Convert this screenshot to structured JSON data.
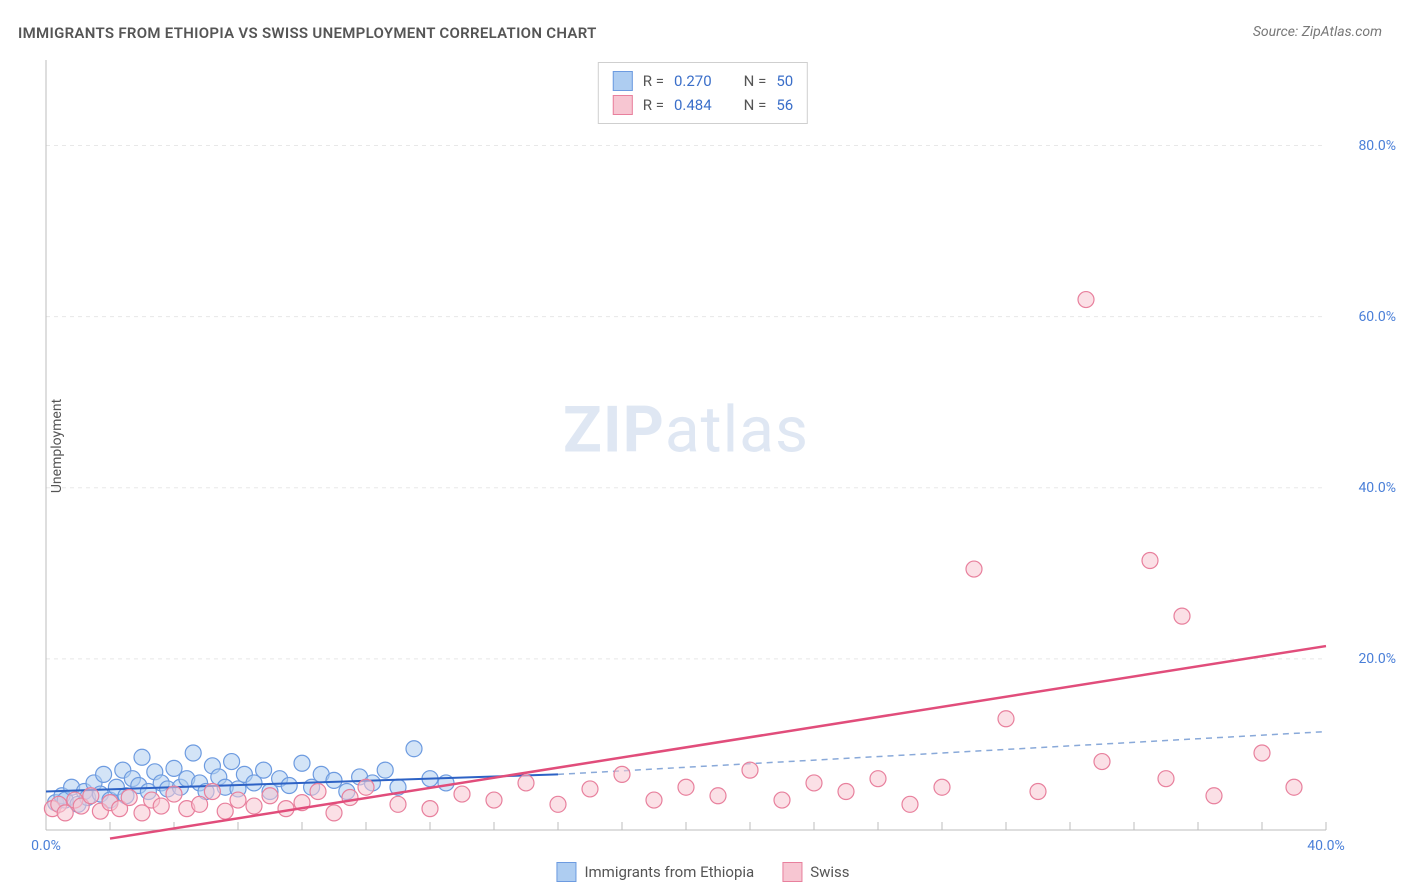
{
  "title": "IMMIGRANTS FROM ETHIOPIA VS SWISS UNEMPLOYMENT CORRELATION CHART",
  "source": "Source: ZipAtlas.com",
  "yaxis_label": "Unemployment",
  "watermark": {
    "bold": "ZIP",
    "rest": "atlas"
  },
  "chart": {
    "type": "scatter",
    "xlim": [
      0,
      40
    ],
    "ylim": [
      0,
      90
    ],
    "xtick_step": 2,
    "xtick_labels": [
      {
        "v": 0,
        "t": "0.0%"
      },
      {
        "v": 40,
        "t": "40.0%"
      }
    ],
    "ytick_labels": [
      {
        "v": 20,
        "t": "20.0%"
      },
      {
        "v": 40,
        "t": "40.0%"
      },
      {
        "v": 60,
        "t": "60.0%"
      },
      {
        "v": 80,
        "t": "80.0%"
      }
    ],
    "grid_color": "#e8e8e8",
    "axis_color": "#bcbcbc",
    "background": "#ffffff",
    "marker_radius": 8,
    "marker_stroke_width": 1.2,
    "series": [
      {
        "name": "Immigrants from Ethiopia",
        "fill": "#aecdf1",
        "stroke": "#6d9be0",
        "fill_opacity": 0.55,
        "points": [
          [
            0.3,
            3.2
          ],
          [
            0.5,
            4.0
          ],
          [
            0.6,
            3.5
          ],
          [
            0.8,
            5.0
          ],
          [
            1.0,
            3.0
          ],
          [
            1.2,
            4.5
          ],
          [
            1.3,
            3.8
          ],
          [
            1.5,
            5.5
          ],
          [
            1.7,
            4.2
          ],
          [
            1.8,
            6.5
          ],
          [
            2.0,
            3.5
          ],
          [
            2.2,
            5.0
          ],
          [
            2.4,
            7.0
          ],
          [
            2.5,
            4.0
          ],
          [
            2.7,
            6.0
          ],
          [
            2.9,
            5.2
          ],
          [
            3.0,
            8.5
          ],
          [
            3.2,
            4.5
          ],
          [
            3.4,
            6.8
          ],
          [
            3.6,
            5.5
          ],
          [
            3.8,
            4.8
          ],
          [
            4.0,
            7.2
          ],
          [
            4.2,
            5.0
          ],
          [
            4.4,
            6.0
          ],
          [
            4.6,
            9.0
          ],
          [
            4.8,
            5.5
          ],
          [
            5.0,
            4.5
          ],
          [
            5.2,
            7.5
          ],
          [
            5.4,
            6.2
          ],
          [
            5.6,
            5.0
          ],
          [
            5.8,
            8.0
          ],
          [
            6.0,
            4.8
          ],
          [
            6.2,
            6.5
          ],
          [
            6.5,
            5.5
          ],
          [
            6.8,
            7.0
          ],
          [
            7.0,
            4.5
          ],
          [
            7.3,
            6.0
          ],
          [
            7.6,
            5.2
          ],
          [
            8.0,
            7.8
          ],
          [
            8.3,
            5.0
          ],
          [
            8.6,
            6.5
          ],
          [
            9.0,
            5.8
          ],
          [
            9.4,
            4.5
          ],
          [
            9.8,
            6.2
          ],
          [
            10.2,
            5.5
          ],
          [
            10.6,
            7.0
          ],
          [
            11.0,
            5.0
          ],
          [
            11.5,
            9.5
          ],
          [
            12.0,
            6.0
          ],
          [
            12.5,
            5.5
          ]
        ],
        "trend": {
          "x1": 0,
          "y1": 4.5,
          "x2": 16,
          "y2": 6.5,
          "ext_x2": 40,
          "ext_y2": 11.5,
          "color": "#2d62c5",
          "dash_color": "#89a9d9",
          "width": 2
        }
      },
      {
        "name": "Swiss",
        "fill": "#f7c6d2",
        "stroke": "#e8809d",
        "fill_opacity": 0.55,
        "points": [
          [
            0.2,
            2.5
          ],
          [
            0.4,
            3.0
          ],
          [
            0.6,
            2.0
          ],
          [
            0.9,
            3.5
          ],
          [
            1.1,
            2.8
          ],
          [
            1.4,
            4.0
          ],
          [
            1.7,
            2.2
          ],
          [
            2.0,
            3.2
          ],
          [
            2.3,
            2.5
          ],
          [
            2.6,
            3.8
          ],
          [
            3.0,
            2.0
          ],
          [
            3.3,
            3.5
          ],
          [
            3.6,
            2.8
          ],
          [
            4.0,
            4.2
          ],
          [
            4.4,
            2.5
          ],
          [
            4.8,
            3.0
          ],
          [
            5.2,
            4.5
          ],
          [
            5.6,
            2.2
          ],
          [
            6.0,
            3.5
          ],
          [
            6.5,
            2.8
          ],
          [
            7.0,
            4.0
          ],
          [
            7.5,
            2.5
          ],
          [
            8.0,
            3.2
          ],
          [
            8.5,
            4.5
          ],
          [
            9.0,
            2.0
          ],
          [
            9.5,
            3.8
          ],
          [
            10.0,
            5.0
          ],
          [
            11.0,
            3.0
          ],
          [
            12.0,
            2.5
          ],
          [
            13.0,
            4.2
          ],
          [
            14.0,
            3.5
          ],
          [
            15.0,
            5.5
          ],
          [
            16.0,
            3.0
          ],
          [
            17.0,
            4.8
          ],
          [
            18.0,
            6.5
          ],
          [
            19.0,
            3.5
          ],
          [
            20.0,
            5.0
          ],
          [
            21.0,
            4.0
          ],
          [
            22.0,
            7.0
          ],
          [
            23.0,
            3.5
          ],
          [
            24.0,
            5.5
          ],
          [
            25.0,
            4.5
          ],
          [
            26.0,
            6.0
          ],
          [
            27.0,
            3.0
          ],
          [
            28.0,
            5.0
          ],
          [
            29.0,
            30.5
          ],
          [
            30.0,
            13.0
          ],
          [
            31.0,
            4.5
          ],
          [
            32.5,
            62.0
          ],
          [
            33.0,
            8.0
          ],
          [
            34.5,
            31.5
          ],
          [
            35.0,
            6.0
          ],
          [
            35.5,
            25.0
          ],
          [
            36.5,
            4.0
          ],
          [
            38.0,
            9.0
          ],
          [
            39.0,
            5.0
          ]
        ],
        "trend": {
          "x1": 2,
          "y1": -1,
          "x2": 40,
          "y2": 21.5,
          "color": "#e14d7b",
          "width": 2.5
        }
      }
    ]
  },
  "legend_top": [
    {
      "swatch_fill": "#aecdf1",
      "swatch_stroke": "#6d9be0",
      "r_label": "R =",
      "r_val": "0.270",
      "n_label": "N =",
      "n_val": "50"
    },
    {
      "swatch_fill": "#f7c6d2",
      "swatch_stroke": "#e8809d",
      "r_label": "R =",
      "r_val": "0.484",
      "n_label": "N =",
      "n_val": "56"
    }
  ],
  "legend_bottom": [
    {
      "swatch_fill": "#aecdf1",
      "swatch_stroke": "#6d9be0",
      "label": "Immigrants from Ethiopia"
    },
    {
      "swatch_fill": "#f7c6d2",
      "swatch_stroke": "#e8809d",
      "label": "Swiss"
    }
  ]
}
